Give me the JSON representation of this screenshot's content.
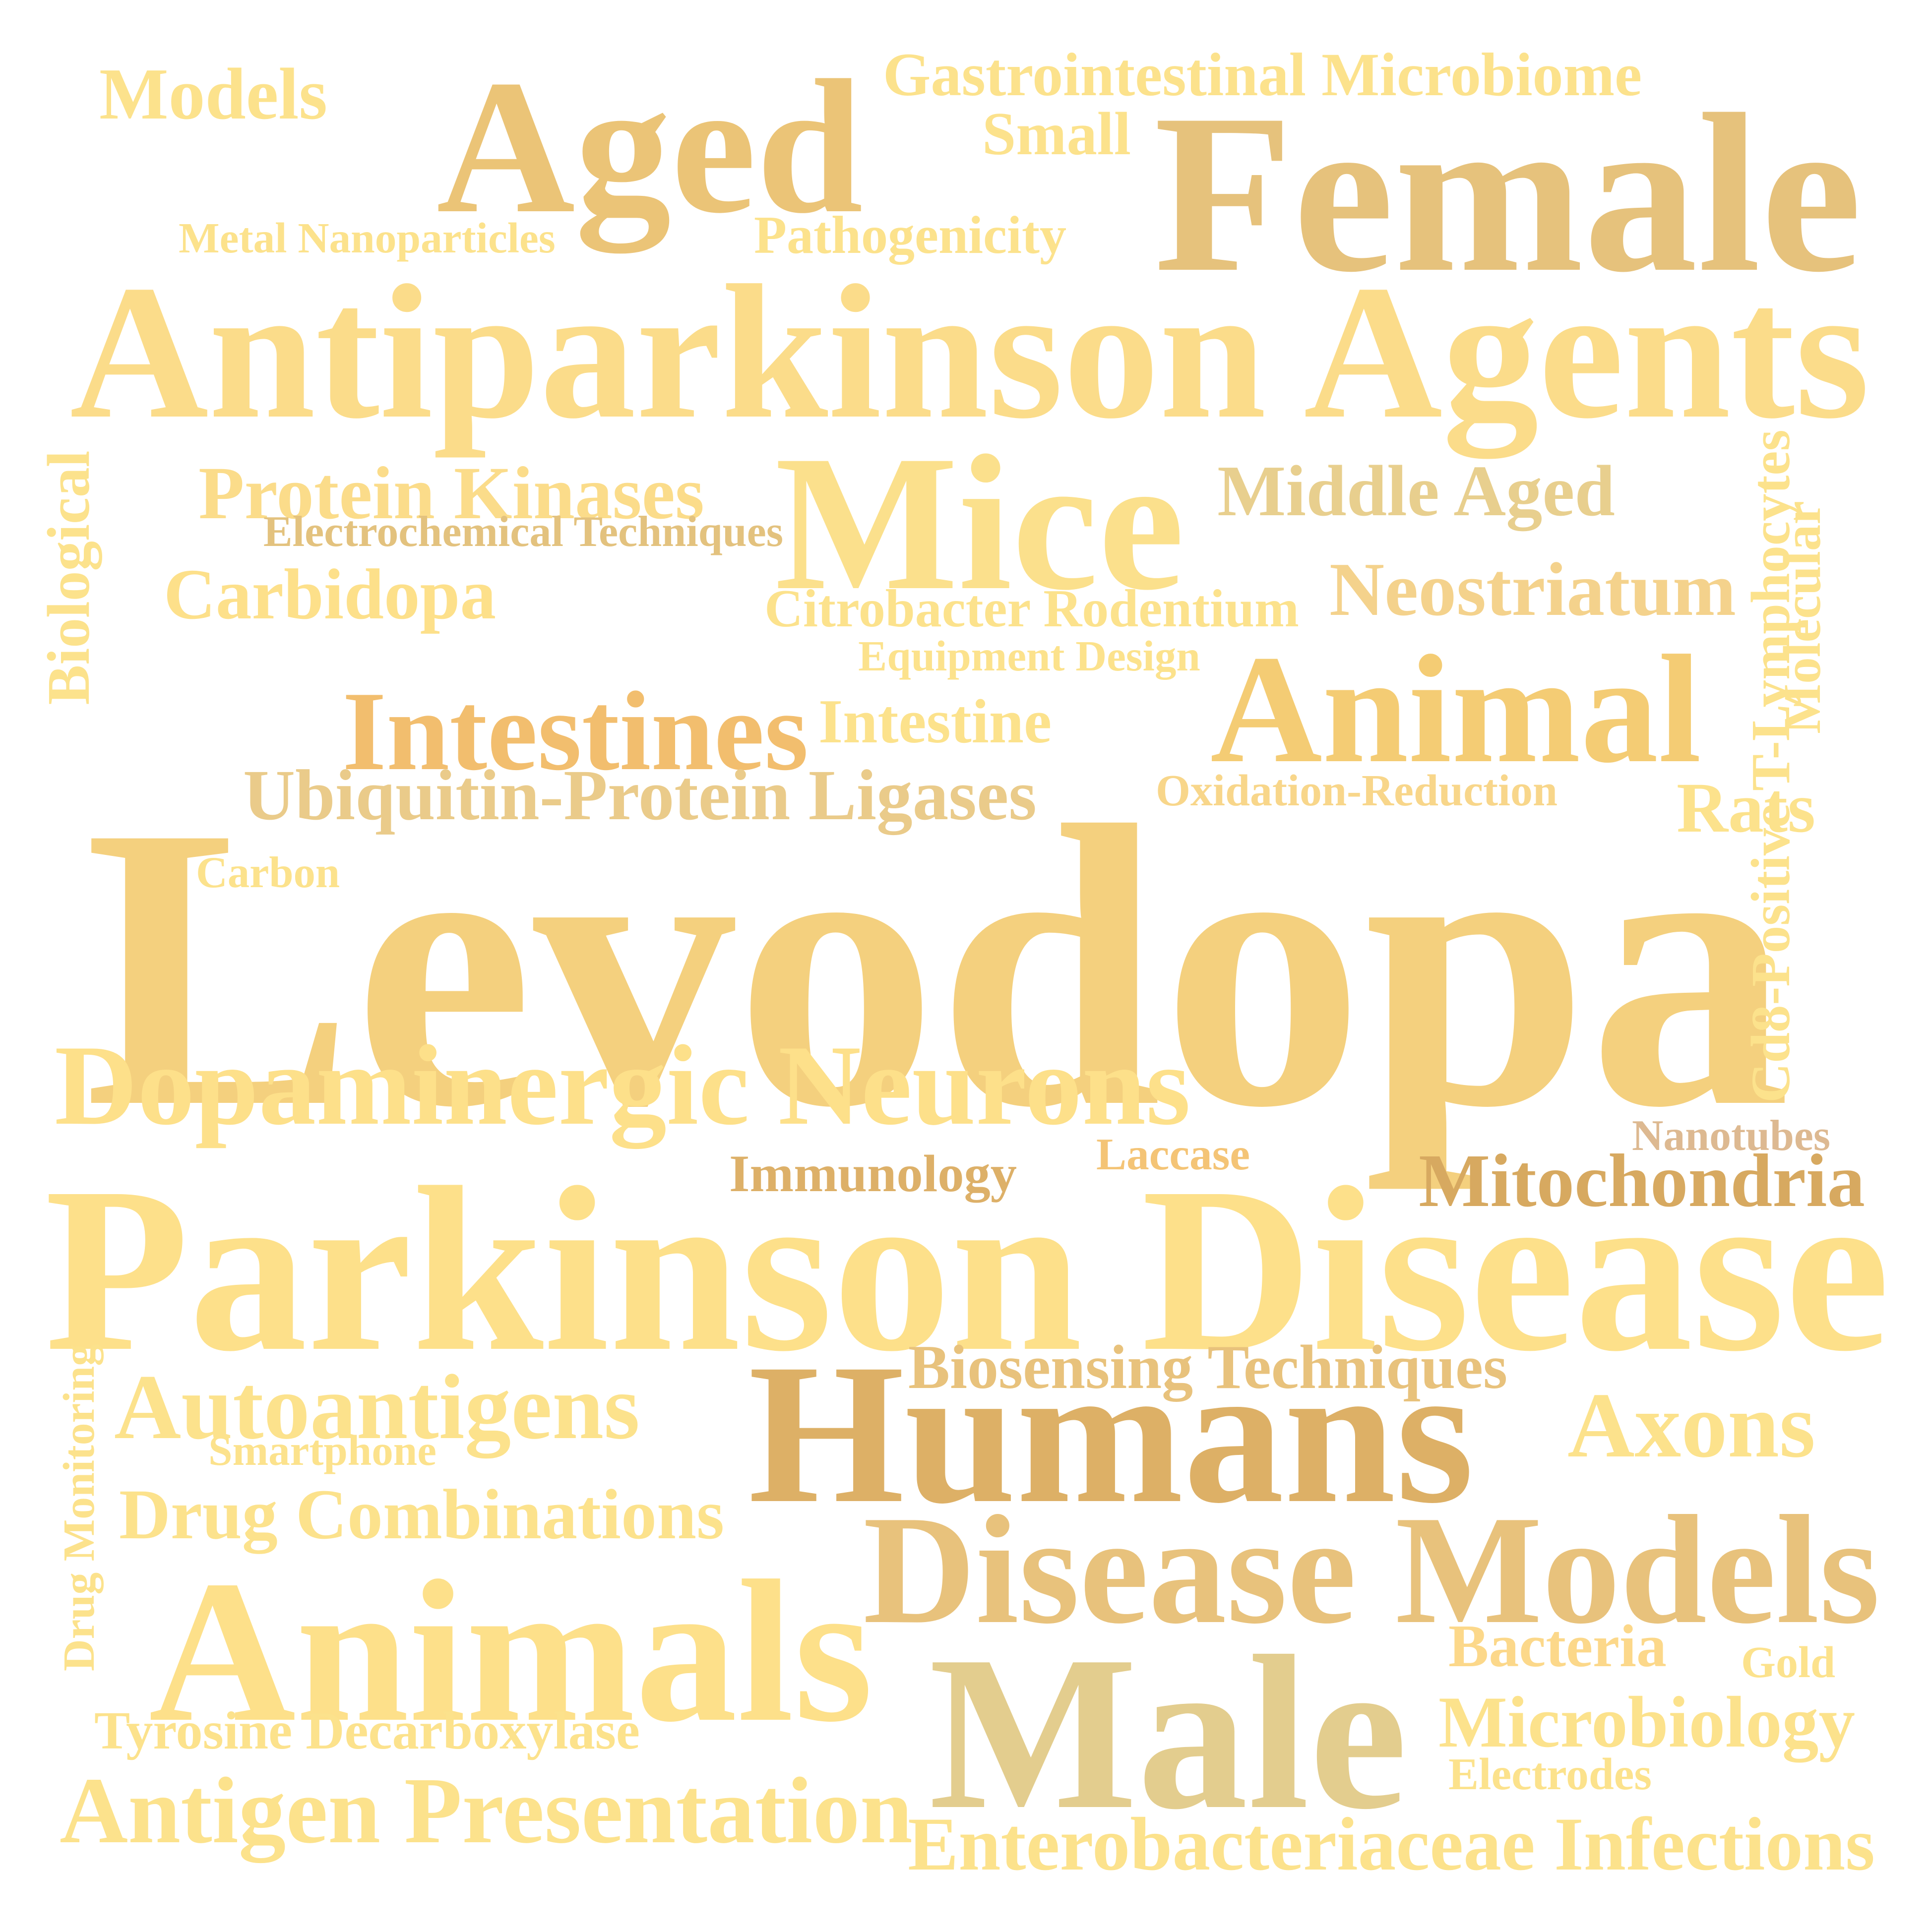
{
  "words": [
    {
      "id": "levodopa",
      "text": "Levodopa",
      "color": "#F4D07E"
    },
    {
      "id": "parkinson-disease",
      "text": "Parkinson Disease",
      "color": "#FDE08A"
    },
    {
      "id": "antiparkinson-agents",
      "text": "Antiparkinson Agents",
      "color": "#FBDC8A"
    },
    {
      "id": "female",
      "text": "Female",
      "color": "#E6C27C"
    },
    {
      "id": "aged",
      "text": "Aged",
      "color": "#EBC477"
    },
    {
      "id": "mice",
      "text": "Mice",
      "color": "#FBE08C"
    },
    {
      "id": "humans",
      "text": "Humans",
      "color": "#DDB066"
    },
    {
      "id": "male",
      "text": "Male",
      "color": "#E3CD8E"
    },
    {
      "id": "animals",
      "text": "Animals",
      "color": "#FDE08A"
    },
    {
      "id": "disease-models",
      "text": "Disease Models",
      "color": "#E8C27C"
    },
    {
      "id": "animal",
      "text": "Animal",
      "color": "#F4CC74"
    },
    {
      "id": "dopaminergic-neurons",
      "text": "Dopaminergic Neurons",
      "color": "#FDE08A"
    },
    {
      "id": "intestines",
      "text": "Intestines",
      "color": "#F2BE6E"
    },
    {
      "id": "ubiquitin-protein-ligases",
      "text": "Ubiquitin-Protein Ligases",
      "color": "#EACB8A"
    },
    {
      "id": "protein-kinases",
      "text": "Protein Kinases",
      "color": "#FBDC8A"
    },
    {
      "id": "middle-aged",
      "text": "Middle Aged",
      "color": "#E8CF8E"
    },
    {
      "id": "neostriatum",
      "text": "Neostriatum",
      "color": "#F4D28C"
    },
    {
      "id": "carbidopa",
      "text": "Carbidopa",
      "color": "#FDE08A"
    },
    {
      "id": "models",
      "text": "Models",
      "color": "#FCE28C"
    },
    {
      "id": "gastrointestinal-microbiome",
      "text": "Gastrointestinal Microbiome",
      "color": "#FCE28C"
    },
    {
      "id": "small",
      "text": "Small",
      "color": "#FCE28C"
    },
    {
      "id": "pathogenicity",
      "text": "Pathogenicity",
      "color": "#FCE28C"
    },
    {
      "id": "metal-nanoparticles",
      "text": "Metal Nanoparticles",
      "color": "#FCE28C"
    },
    {
      "id": "electrochemical-techniques",
      "text": "Electrochemical Techniques",
      "color": "#E3C27E"
    },
    {
      "id": "citrobacter-rodentium",
      "text": "Citrobacter Rodentium",
      "color": "#FCE28C"
    },
    {
      "id": "equipment-design",
      "text": "Equipment Design",
      "color": "#FCE28C"
    },
    {
      "id": "intestine",
      "text": "Intestine",
      "color": "#FCE28C"
    },
    {
      "id": "oxidation-reduction",
      "text": "Oxidation-Reduction",
      "color": "#F8D68A"
    },
    {
      "id": "rats",
      "text": "Rats",
      "color": "#FCE28C"
    },
    {
      "id": "carbon",
      "text": "Carbon",
      "color": "#FCE28C"
    },
    {
      "id": "biological",
      "text": "Biological",
      "color": "#FCE28C"
    },
    {
      "id": "molecular",
      "text": "Molecular",
      "color": "#FCE28C"
    },
    {
      "id": "cd8-positive-t-lymphocytes",
      "text": "Cd8-Positive T-Lymphocytes",
      "color": "#FCE28C"
    },
    {
      "id": "nanotubes",
      "text": "Nanotubes",
      "color": "#DDB991"
    },
    {
      "id": "laccase",
      "text": "Laccase",
      "color": "#F4C476"
    },
    {
      "id": "immunology",
      "text": "Immunology",
      "color": "#DDB068"
    },
    {
      "id": "mitochondria",
      "text": "Mitochondria",
      "color": "#D7A960"
    },
    {
      "id": "biosensing-techniques",
      "text": "Biosensing Techniques",
      "color": "#E8C27C"
    },
    {
      "id": "autoantigens",
      "text": "Autoantigens",
      "color": "#FCE28C"
    },
    {
      "id": "smartphone",
      "text": "Smartphone",
      "color": "#FCE28C"
    },
    {
      "id": "drug-monitoring",
      "text": "Drug Monitoring",
      "color": "#FCE28C"
    },
    {
      "id": "drug-combinations",
      "text": "Drug Combinations",
      "color": "#FCE28C"
    },
    {
      "id": "axons",
      "text": "Axons",
      "color": "#FCE28C"
    },
    {
      "id": "bacteria",
      "text": "Bacteria",
      "color": "#FCD88A"
    },
    {
      "id": "gold",
      "text": "Gold",
      "color": "#FCE28C"
    },
    {
      "id": "microbiology",
      "text": "Microbiology",
      "color": "#FCE28C"
    },
    {
      "id": "electrodes",
      "text": "Electrodes",
      "color": "#FCE28C"
    },
    {
      "id": "tyrosine-decarboxylase",
      "text": "Tyrosine Decarboxylase",
      "color": "#FCE28C"
    },
    {
      "id": "antigen-presentation",
      "text": "Antigen Presentation",
      "color": "#FCE28C"
    },
    {
      "id": "enterobacteriaceae-infections",
      "text": "Enterobacteriaceae Infections",
      "color": "#FCE28C"
    }
  ]
}
